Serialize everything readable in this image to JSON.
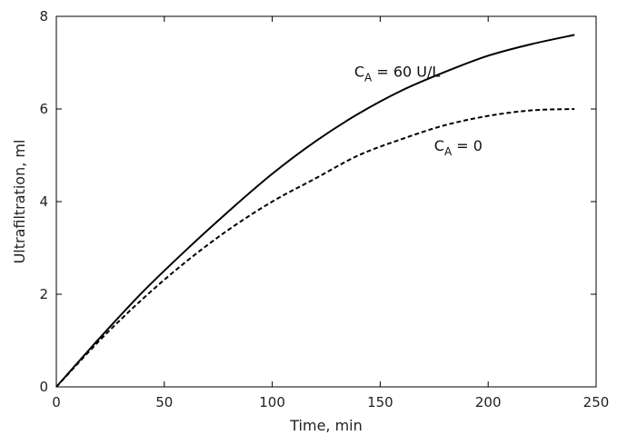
{
  "chart_data": {
    "type": "line",
    "xlabel": "Time, min",
    "ylabel": "Ultrafiltration, ml",
    "xlim": [
      0,
      250
    ],
    "ylim": [
      0,
      8
    ],
    "xticks": [
      0,
      50,
      100,
      150,
      200,
      250
    ],
    "yticks": [
      0,
      2,
      4,
      6,
      8
    ],
    "grid": false,
    "legend": "none",
    "series": [
      {
        "style": "solid",
        "color": "#000000",
        "x": [
          0,
          20,
          40,
          60,
          80,
          100,
          120,
          140,
          160,
          180,
          200,
          220,
          240
        ],
        "y": [
          0,
          1.05,
          2.05,
          2.95,
          3.8,
          4.6,
          5.3,
          5.9,
          6.4,
          6.8,
          7.15,
          7.4,
          7.6
        ]
      },
      {
        "style": "dashed",
        "color": "#000000",
        "x": [
          0,
          20,
          40,
          60,
          80,
          100,
          120,
          140,
          160,
          180,
          200,
          220,
          240
        ],
        "y": [
          0,
          1.0,
          1.9,
          2.7,
          3.4,
          4.0,
          4.5,
          5.0,
          5.35,
          5.65,
          5.85,
          5.97,
          6.0
        ]
      }
    ],
    "annotations": [
      {
        "main": "C",
        "sub": "A",
        "rest": " = 60 U/L",
        "x": 138,
        "y": 6.7,
        "series": 0
      },
      {
        "main": "C",
        "sub": "A",
        "rest": " = 0",
        "x": 175,
        "y": 5.1,
        "series": 1
      }
    ]
  }
}
